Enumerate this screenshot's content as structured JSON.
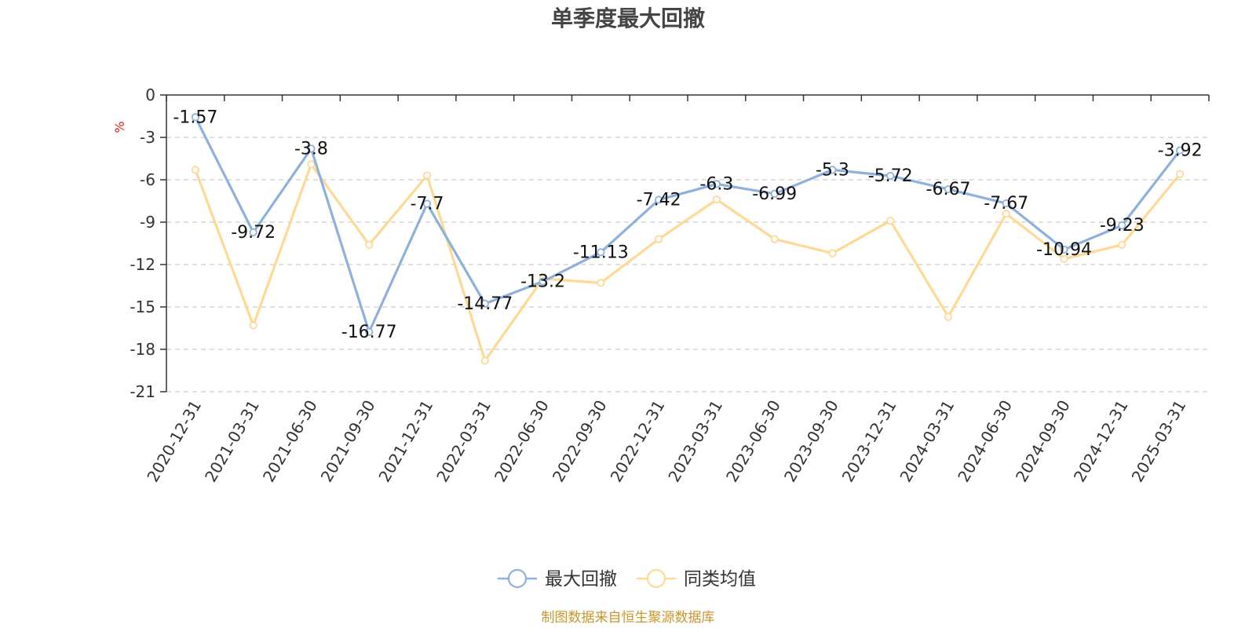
{
  "chart_data": {
    "type": "line",
    "title": "单季度最大回撤",
    "ylabel": "%",
    "xlabel": "",
    "ylim": [
      -21,
      0
    ],
    "y_ticks": [
      0,
      -3,
      -6,
      -9,
      -12,
      -15,
      -18,
      -21
    ],
    "grid": true,
    "legend_position": "bottom-center",
    "categories": [
      "2020-12-31",
      "2021-03-31",
      "2021-06-30",
      "2021-09-30",
      "2021-12-31",
      "2022-03-31",
      "2022-06-30",
      "2022-09-30",
      "2022-12-31",
      "2023-03-31",
      "2023-06-30",
      "2023-09-30",
      "2023-12-31",
      "2024-03-31",
      "2024-06-30",
      "2024-09-30",
      "2024-12-31",
      "2025-03-31"
    ],
    "series": [
      {
        "name": "最大回撤",
        "color": "#8eb0dc",
        "values": [
          -1.57,
          -9.72,
          -3.8,
          -16.77,
          -7.7,
          -14.77,
          -13.2,
          -11.13,
          -7.42,
          -6.3,
          -6.99,
          -5.3,
          -5.72,
          -6.67,
          -7.67,
          -10.94,
          -9.23,
          -3.92
        ],
        "show_labels": true
      },
      {
        "name": "同类均值",
        "color": "#fdd994",
        "values": [
          -5.3,
          -16.3,
          -4.9,
          -10.6,
          -5.7,
          -18.8,
          -13.0,
          -13.3,
          -10.2,
          -7.4,
          -10.2,
          -11.2,
          -8.9,
          -15.7,
          -8.4,
          -11.6,
          -10.6,
          -5.6
        ],
        "show_labels": false
      }
    ],
    "source_note": "制图数据来自恒生聚源数据库",
    "colors": {
      "axis": "#333333",
      "grid": "#cccccc",
      "unit": "#e02020",
      "source": "#c8962c"
    }
  }
}
